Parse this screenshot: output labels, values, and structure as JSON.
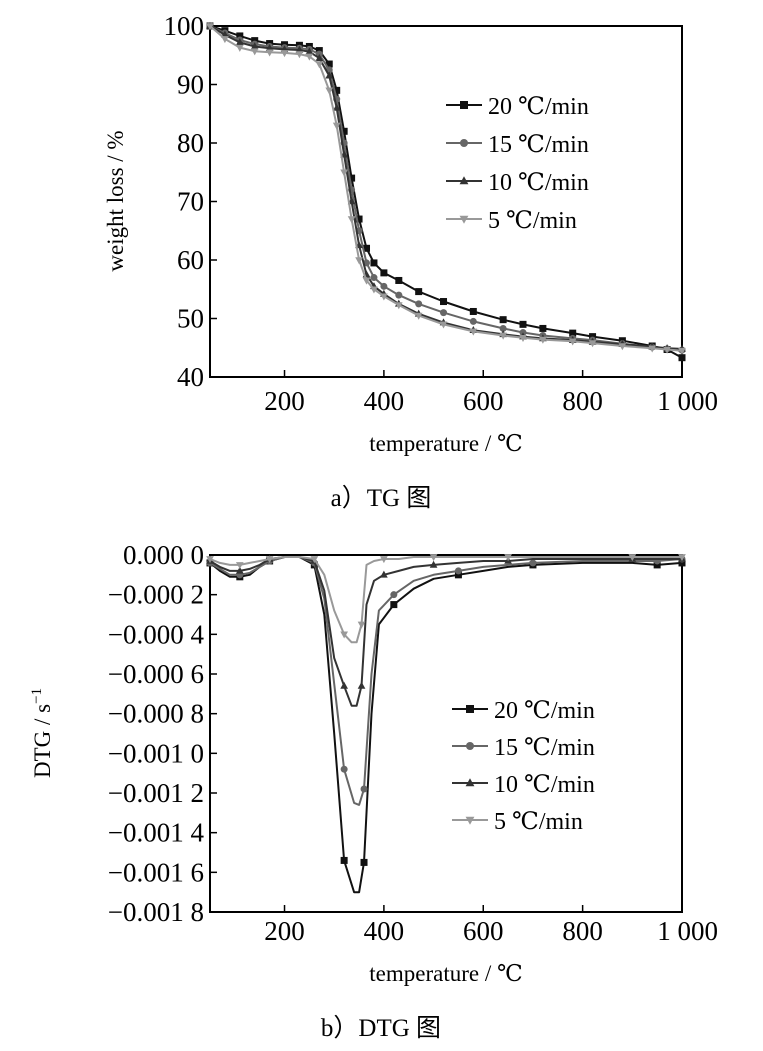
{
  "chart_data": [
    {
      "type": "line",
      "title": "",
      "caption": "a）TG 图",
      "xlabel": "temperature / ℃",
      "ylabel": "weight loss / %",
      "xlim": [
        50,
        1000
      ],
      "ylim": [
        40,
        100
      ],
      "x_ticks": [
        200,
        400,
        600,
        800,
        1000
      ],
      "x_tick_labels": [
        "200",
        "400",
        "600",
        "800",
        "1 000"
      ],
      "y_ticks": [
        40,
        50,
        60,
        70,
        80,
        90,
        100
      ],
      "y_tick_labels": [
        "40",
        "50",
        "60",
        "70",
        "80",
        "90",
        "100"
      ],
      "grid": false,
      "legend_position": "center-right",
      "series": [
        {
          "name": "20 ℃/min",
          "marker": "square",
          "color": "#111111",
          "x": [
            50,
            80,
            110,
            140,
            170,
            200,
            230,
            250,
            270,
            290,
            305,
            320,
            335,
            350,
            365,
            380,
            400,
            430,
            470,
            520,
            580,
            640,
            680,
            720,
            780,
            820,
            880,
            940,
            970,
            1000
          ],
          "y": [
            100,
            99.2,
            98.3,
            97.5,
            97,
            96.8,
            96.7,
            96.5,
            95.8,
            93.5,
            89,
            82,
            74,
            67,
            62,
            59.5,
            57.8,
            56.5,
            54.6,
            52.9,
            51.2,
            49.8,
            49,
            48.3,
            47.5,
            46.9,
            46.2,
            45.3,
            44.7,
            43.3
          ]
        },
        {
          "name": "15 ℃/min",
          "marker": "circle",
          "color": "#666666",
          "x": [
            50,
            80,
            110,
            140,
            170,
            200,
            230,
            250,
            270,
            290,
            305,
            320,
            335,
            350,
            365,
            380,
            400,
            430,
            470,
            520,
            580,
            640,
            680,
            720,
            780,
            820,
            880,
            940,
            970,
            1000
          ],
          "y": [
            100,
            98.8,
            97.6,
            96.9,
            96.5,
            96.3,
            96.2,
            96,
            95.2,
            92.5,
            87.5,
            80,
            72,
            65,
            59.5,
            57,
            55.5,
            54,
            52.5,
            51,
            49.5,
            48.3,
            47.6,
            47.1,
            46.6,
            46.3,
            45.7,
            45.1,
            44.8,
            44.6
          ]
        },
        {
          "name": "10 ℃/min",
          "marker": "triangle-up",
          "color": "#333333",
          "x": [
            50,
            80,
            110,
            140,
            170,
            200,
            230,
            250,
            270,
            290,
            305,
            320,
            335,
            350,
            365,
            380,
            400,
            430,
            470,
            520,
            580,
            640,
            680,
            720,
            780,
            820,
            880,
            940,
            970,
            1000
          ],
          "y": [
            100,
            98.5,
            97.2,
            96.5,
            96.2,
            96,
            95.9,
            95.6,
            94.5,
            91.5,
            86,
            78,
            70,
            62.5,
            57.5,
            55.5,
            54.2,
            52.5,
            50.8,
            49.3,
            48,
            47.3,
            46.9,
            46.6,
            46.3,
            46,
            45.6,
            45.2,
            44.9,
            44.8
          ]
        },
        {
          "name": "5 ℃/min",
          "marker": "triangle-down",
          "color": "#999999",
          "x": [
            50,
            80,
            110,
            140,
            170,
            200,
            230,
            250,
            270,
            290,
            305,
            320,
            335,
            350,
            365,
            380,
            400,
            430,
            470,
            520,
            580,
            640,
            680,
            720,
            780,
            820,
            880,
            940,
            970,
            1000
          ],
          "y": [
            100,
            97.8,
            96.3,
            95.7,
            95.5,
            95.4,
            95.2,
            94.8,
            93.5,
            89,
            83,
            75,
            67,
            60,
            56.5,
            55,
            53.8,
            52.3,
            50.5,
            49,
            47.8,
            47.1,
            46.7,
            46.4,
            46.1,
            45.8,
            45.3,
            44.9,
            44.7,
            44.5
          ]
        }
      ]
    },
    {
      "type": "line",
      "title": "",
      "caption": "b）DTG 图",
      "xlabel": "temperature / ℃",
      "ylabel": "DTG / s",
      "ylabel_superscript": "−1",
      "xlim": [
        50,
        1000
      ],
      "ylim": [
        -0.0018,
        0
      ],
      "x_ticks": [
        200,
        400,
        600,
        800,
        1000
      ],
      "x_tick_labels": [
        "200",
        "400",
        "600",
        "800",
        "1 000"
      ],
      "y_ticks": [
        0,
        -0.0002,
        -0.0004,
        -0.0006,
        -0.0008,
        -0.001,
        -0.0012,
        -0.0014,
        -0.0016,
        -0.0018
      ],
      "y_tick_labels": [
        "0.000 0",
        "−0.000 2",
        "−0.000 4",
        "−0.000 6",
        "−0.000 8",
        "−0.001 0",
        "−0.001 2",
        "−0.001 4",
        "−0.001 6",
        "−0.001 8"
      ],
      "grid": false,
      "legend_position": "center-right",
      "series": [
        {
          "name": "20 ℃/min",
          "marker": "square",
          "color": "#111111",
          "x": [
            50,
            70,
            90,
            110,
            130,
            150,
            170,
            200,
            230,
            260,
            280,
            300,
            320,
            340,
            350,
            360,
            375,
            390,
            420,
            460,
            500,
            550,
            600,
            650,
            700,
            800,
            900,
            950,
            1000
          ],
          "y": [
            -4e-05,
            -8e-05,
            -0.00011,
            -0.00011,
            -0.0001,
            -6e-05,
            -3e-05,
            -1e-05,
            -1e-05,
            -5e-05,
            -0.0003,
            -0.0009,
            -0.00154,
            -0.0017,
            -0.0017,
            -0.00155,
            -0.0008,
            -0.00035,
            -0.00025,
            -0.00017,
            -0.00012,
            -0.0001,
            -8e-05,
            -6e-05,
            -5e-05,
            -4e-05,
            -4e-05,
            -5e-05,
            -4e-05
          ]
        },
        {
          "name": "15 ℃/min",
          "marker": "circle",
          "color": "#666666",
          "x": [
            50,
            70,
            90,
            110,
            130,
            150,
            170,
            200,
            230,
            260,
            280,
            300,
            320,
            340,
            350,
            360,
            375,
            390,
            420,
            460,
            500,
            550,
            600,
            650,
            700,
            800,
            900,
            950,
            1000
          ],
          "y": [
            -4e-05,
            -7e-05,
            -0.0001,
            -0.0001,
            -9e-05,
            -6e-05,
            -3e-05,
            -1e-05,
            -1e-05,
            -4e-05,
            -0.00022,
            -0.00065,
            -0.00108,
            -0.00125,
            -0.00126,
            -0.00118,
            -0.0006,
            -0.00028,
            -0.0002,
            -0.00013,
            -0.0001,
            -8e-05,
            -6e-05,
            -5e-05,
            -4e-05,
            -3e-05,
            -3e-05,
            -3e-05,
            -2e-05
          ]
        },
        {
          "name": "10 ℃/min",
          "marker": "triangle-up",
          "color": "#333333",
          "x": [
            50,
            70,
            90,
            110,
            130,
            150,
            170,
            200,
            230,
            260,
            280,
            300,
            320,
            335,
            345,
            355,
            365,
            380,
            400,
            430,
            460,
            500,
            550,
            600,
            650,
            700,
            800,
            900,
            1000
          ],
          "y": [
            -3e-05,
            -6e-05,
            -8e-05,
            -8e-05,
            -7e-05,
            -5e-05,
            -2e-05,
            -1e-05,
            -1e-05,
            -3e-05,
            -0.00018,
            -0.00052,
            -0.00066,
            -0.00076,
            -0.00076,
            -0.00066,
            -0.00025,
            -0.00013,
            -0.0001,
            -8e-05,
            -6e-05,
            -5e-05,
            -4e-05,
            -3e-05,
            -3e-05,
            -2e-05,
            -2e-05,
            -2e-05,
            -2e-05
          ]
        },
        {
          "name": "5 ℃/min",
          "marker": "triangle-down",
          "color": "#999999",
          "x": [
            50,
            70,
            90,
            110,
            130,
            150,
            170,
            200,
            230,
            260,
            280,
            300,
            320,
            335,
            345,
            355,
            365,
            380,
            400,
            430,
            460,
            500,
            550,
            600,
            650,
            700,
            800,
            900,
            1000
          ],
          "y": [
            -2e-05,
            -4e-05,
            -5e-05,
            -5e-05,
            -4e-05,
            -3e-05,
            -2e-05,
            -1e-05,
            -1e-05,
            -2e-05,
            -0.0001,
            -0.00028,
            -0.0004,
            -0.00044,
            -0.00044,
            -0.00035,
            -5e-05,
            -3e-05,
            -2e-05,
            -2e-05,
            -1e-05,
            -1e-05,
            -1e-05,
            -1e-05,
            -1e-05,
            -1e-05,
            -1e-05,
            -1e-05,
            -1e-05
          ]
        }
      ]
    }
  ]
}
